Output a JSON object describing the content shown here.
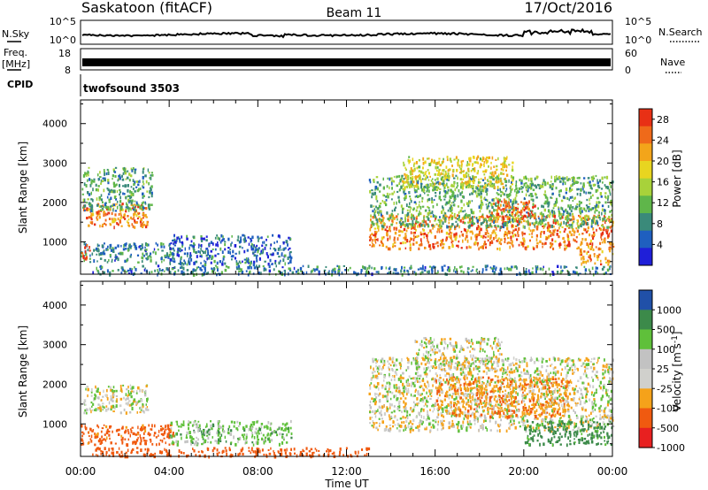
{
  "header": {
    "title": "Saskatoon (fitACF)",
    "beam": "Beam 11",
    "date": "17/Oct/2016"
  },
  "param_panels": {
    "nsky": {
      "label": "N.Sky",
      "ticks": [
        "10^5",
        "10^0"
      ],
      "right_label": "N.Search",
      "right_ticks": [
        "10^5",
        "10^0"
      ]
    },
    "freq": {
      "label_lines": [
        "Freq.",
        "[MHz]"
      ],
      "ticks": [
        "18",
        "8"
      ],
      "right_label": "Nave",
      "right_ticks": [
        "60",
        "0"
      ]
    },
    "cpid": {
      "label": "CPID",
      "value": "twofsound 3503"
    }
  },
  "x_axis": {
    "title": "Time UT",
    "ticks": [
      "00:00",
      "04:00",
      "08:00",
      "12:00",
      "16:00",
      "20:00",
      "00:00"
    ]
  },
  "chart_data": [
    {
      "type": "heatmap",
      "name": "power",
      "ylabel": "Slant Range [km]",
      "yticks": [
        1000,
        2000,
        3000,
        4000
      ],
      "ylim": [
        180,
        4600
      ],
      "xlim": [
        0,
        24
      ],
      "colorbar": {
        "label": "Power [dB]",
        "ticks": [
          4,
          8,
          12,
          16,
          20,
          24,
          28
        ],
        "range": [
          0,
          30
        ]
      },
      "colors": [
        "#1f1fd8",
        "#1f5fbf",
        "#3a8a7a",
        "#5fb64a",
        "#a8d23a",
        "#e8d520",
        "#f3a51a",
        "#ef6a1a",
        "#e83015"
      ],
      "regions": [
        {
          "t": [
            0.1,
            3.0
          ],
          "r": [
            1400,
            2000
          ],
          "level": 24
        },
        {
          "t": [
            0.0,
            3.2
          ],
          "r": [
            1800,
            2900
          ],
          "level": 10
        },
        {
          "t": [
            0.0,
            4.2
          ],
          "r": [
            500,
            1000
          ],
          "level": 8
        },
        {
          "t": [
            0.0,
            0.4
          ],
          "r": [
            550,
            950
          ],
          "level": 26
        },
        {
          "t": [
            4.0,
            9.5
          ],
          "r": [
            450,
            1200
          ],
          "level": 6
        },
        {
          "t": [
            0.5,
            13.0
          ],
          "r": [
            200,
            420
          ],
          "level": 8
        },
        {
          "t": [
            13.0,
            24.0
          ],
          "r": [
            850,
            1700
          ],
          "level": 24
        },
        {
          "t": [
            13.0,
            24.0
          ],
          "r": [
            1400,
            2700
          ],
          "level": 11
        },
        {
          "t": [
            14.5,
            19.5
          ],
          "r": [
            2400,
            3200
          ],
          "level": 18
        },
        {
          "t": [
            18.5,
            20.5
          ],
          "r": [
            1600,
            2100
          ],
          "level": 26
        },
        {
          "t": [
            22.5,
            24.0
          ],
          "r": [
            450,
            900
          ],
          "level": 24
        },
        {
          "t": [
            12.5,
            24.0
          ],
          "r": [
            200,
            420
          ],
          "level": 8
        }
      ]
    },
    {
      "type": "heatmap",
      "name": "velocity",
      "ylabel": "Slant Range [km]",
      "yticks": [
        1000,
        2000,
        3000,
        4000
      ],
      "ylim": [
        180,
        4600
      ],
      "xlim": [
        0,
        24
      ],
      "colorbar": {
        "label": "Velocity [m s^-1]",
        "ticks": [
          1000,
          500,
          100,
          25,
          -25,
          -100,
          -500,
          -1000
        ]
      },
      "colors": [
        "#e82020",
        "#f05a10",
        "#f5a21a",
        "#d0d0cc",
        "#c2c2c2",
        "#5fc03a",
        "#3c8a4a",
        "#2050a8"
      ],
      "regions": [
        {
          "t": [
            0.1,
            3.0
          ],
          "r": [
            1300,
            2000
          ],
          "v": 0
        },
        {
          "t": [
            0.0,
            4.2
          ],
          "r": [
            500,
            1000
          ],
          "v": -150
        },
        {
          "t": [
            4.0,
            9.5
          ],
          "r": [
            500,
            1100
          ],
          "v": 60
        },
        {
          "t": [
            0.5,
            13.0
          ],
          "r": [
            200,
            420
          ],
          "v": -200
        },
        {
          "t": [
            13.0,
            24.0
          ],
          "r": [
            850,
            2700
          ],
          "v": 0
        },
        {
          "t": [
            15.0,
            19.0
          ],
          "r": [
            2400,
            3200
          ],
          "v": 0
        },
        {
          "t": [
            20.0,
            24.0
          ],
          "r": [
            500,
            1100
          ],
          "v": 150
        },
        {
          "t": [
            16.0,
            22.0
          ],
          "r": [
            1200,
            2200
          ],
          "v": -80
        }
      ]
    }
  ]
}
